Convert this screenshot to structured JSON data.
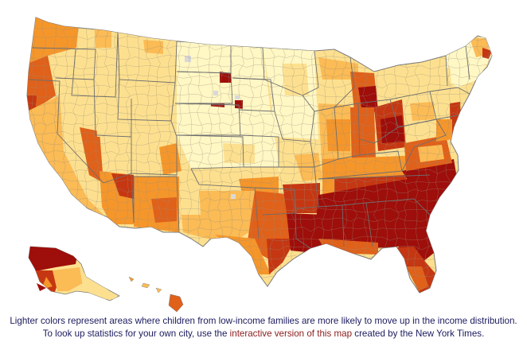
{
  "map": {
    "region": "United States",
    "palette": {
      "lightest": "#fff7c4",
      "light": "#fde08f",
      "mid": "#fbbb55",
      "orange": "#f5962b",
      "dark_orange": "#e0611a",
      "red": "#c53712",
      "dark_red": "#9e0e0a",
      "no_data": "#d9d9d9",
      "borders": "#8a8a8a"
    },
    "pattern": "Darker reds concentrated in the Southeast; lighter yellows across the Great Plains, Midwest and Northeast"
  },
  "caption": {
    "line1": "Lighter colors represent areas where children from low-income families are more likely to move up in the income distribution.",
    "line2_before": "To look up statistics for your own city, use the ",
    "link_text": "interactive version of this map",
    "line2_after": " created by the New York Times."
  }
}
